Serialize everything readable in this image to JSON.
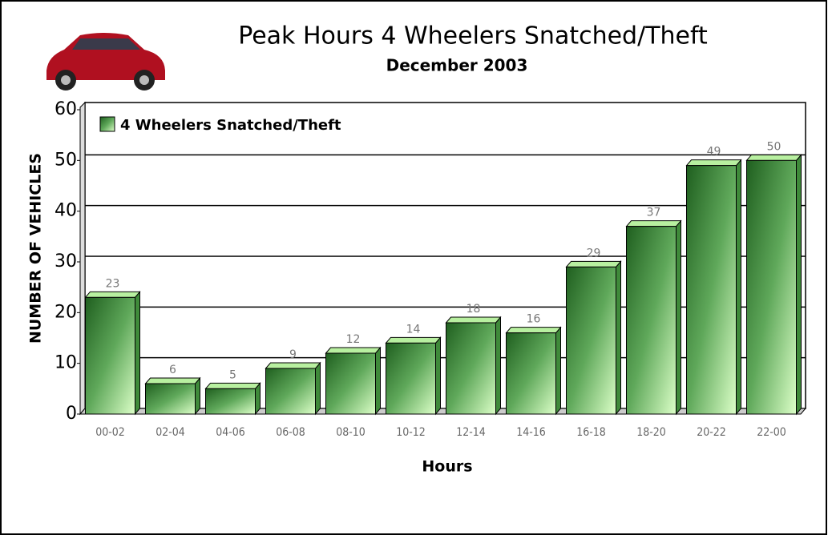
{
  "chart_data": {
    "type": "bar",
    "title": "Peak Hours 4 Wheelers Snatched/Theft",
    "subtitle": "December 2003",
    "x_label": "Hours",
    "y_label": "NUMBER OF VEHICLES",
    "categories": [
      "00-02",
      "02-04",
      "04-06",
      "06-08",
      "08-10",
      "10-12",
      "12-14",
      "14-16",
      "16-18",
      "18-20",
      "20-22",
      "22-00"
    ],
    "series": [
      {
        "name": "4 Wheelers Snatched/Theft",
        "color": "#2e7d2e",
        "values": [
          23,
          6,
          5,
          9,
          12,
          14,
          18,
          16,
          29,
          37,
          49,
          50
        ]
      }
    ],
    "ylim": [
      0,
      60
    ],
    "yticks": [
      0,
      10,
      20,
      30,
      40,
      50,
      60
    ],
    "grid": true,
    "legend": "top-left"
  }
}
